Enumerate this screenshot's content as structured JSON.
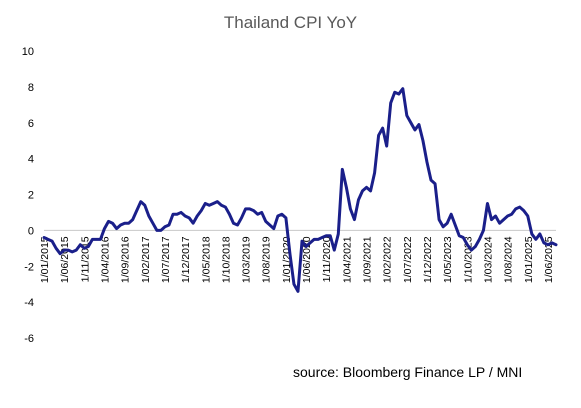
{
  "chart_data": {
    "type": "line",
    "title": "Thailand CPI YoY",
    "source": "source: Bloomberg Finance LP / MNI",
    "xlabel": "",
    "ylabel": "",
    "ylim": [
      -6,
      10
    ],
    "yticks": [
      -6,
      -4,
      -2,
      0,
      2,
      4,
      6,
      8,
      10
    ],
    "grid": false,
    "legend": "none",
    "line_color": "#1a1f8a",
    "x_tick_labels": [
      "1/01/2015",
      "1/06/2015",
      "1/11/2015",
      "1/04/2016",
      "1/09/2016",
      "1/02/2017",
      "1/07/2017",
      "1/12/2017",
      "1/05/2018",
      "1/10/2018",
      "1/03/2019",
      "1/08/2019",
      "1/01/2020",
      "1/06/2020",
      "1/11/2020",
      "1/04/2021",
      "1/09/2021",
      "1/02/2022",
      "1/07/2022",
      "1/12/2022",
      "1/05/2023",
      "1/10/2023",
      "1/03/2024",
      "1/08/2024",
      "1/01/2025",
      "1/06/2025"
    ],
    "series": [
      {
        "values": [
          -0.4,
          -0.5,
          -0.6,
          -1.0,
          -1.3,
          -1.1,
          -1.1,
          -1.2,
          -1.1,
          -0.8,
          -1.0,
          -0.9,
          -0.5,
          -0.5,
          -0.5,
          0.1,
          0.5,
          0.4,
          0.1,
          0.3,
          0.4,
          0.4,
          0.6,
          1.1,
          1.6,
          1.4,
          0.8,
          0.4,
          0.0,
          0.0,
          0.2,
          0.3,
          0.9,
          0.9,
          1.0,
          0.8,
          0.7,
          0.4,
          0.8,
          1.1,
          1.5,
          1.4,
          1.5,
          1.6,
          1.4,
          1.3,
          0.9,
          0.4,
          0.3,
          0.7,
          1.2,
          1.2,
          1.1,
          0.9,
          1.0,
          0.5,
          0.3,
          0.1,
          0.8,
          0.9,
          0.7,
          -1.3,
          -3.0,
          -3.4,
          -0.6,
          -0.9,
          -0.7,
          -0.5,
          -0.5,
          -0.4,
          -0.3,
          -0.3,
          -1.1,
          -0.2,
          3.4,
          2.4,
          1.2,
          0.6,
          1.7,
          2.2,
          2.4,
          2.2,
          3.2,
          5.3,
          5.7,
          4.7,
          7.1,
          7.7,
          7.6,
          7.9,
          6.4,
          6.0,
          5.6,
          5.9,
          5.0,
          3.8,
          2.8,
          2.6,
          0.6,
          0.2,
          0.4,
          0.9,
          0.3,
          -0.3,
          -0.4,
          -0.8,
          -1.1,
          -0.9,
          -0.5,
          0.0,
          1.5,
          0.6,
          0.8,
          0.4,
          0.6,
          0.8,
          0.9,
          1.2,
          1.3,
          1.1,
          0.8,
          -0.2,
          -0.5,
          -0.2,
          -0.7,
          -0.8,
          -0.7,
          -0.8
        ]
      }
    ]
  }
}
